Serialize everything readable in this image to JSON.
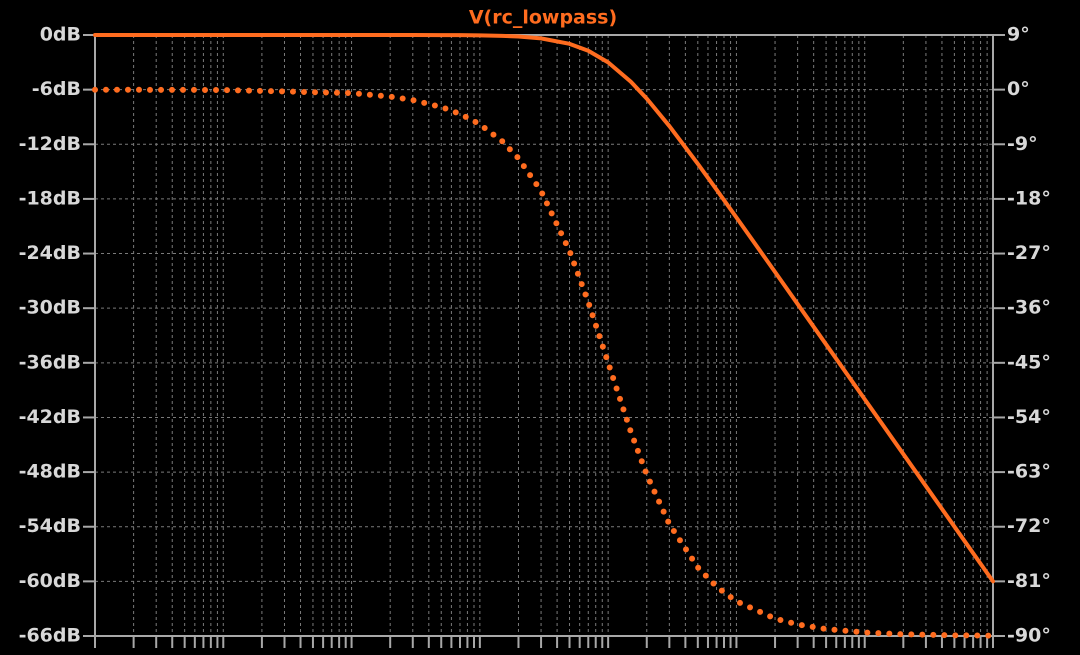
{
  "chart_data": {
    "type": "line",
    "title": "V(rc_lowpass)",
    "x": [
      1,
      10,
      100,
      200,
      300,
      500,
      700,
      1000,
      1500,
      2000,
      3000,
      5000,
      7000,
      10000,
      15000,
      20000,
      30000,
      50000,
      70000,
      100000,
      200000,
      300000,
      500000,
      1000000,
      2000000,
      5000000,
      10000000
    ],
    "xlim": [
      1,
      10000000
    ],
    "xscale": "log",
    "xticks": [
      1,
      2,
      3,
      4,
      5,
      6,
      7,
      8,
      9,
      10,
      20,
      30,
      40,
      50,
      60,
      70,
      80,
      90,
      100,
      200,
      300,
      400,
      500,
      600,
      700,
      800,
      900,
      1000,
      2000,
      3000,
      4000,
      5000,
      6000,
      7000,
      8000,
      9000,
      10000,
      20000,
      30000,
      40000,
      50000,
      60000,
      70000,
      80000,
      90000,
      100000,
      200000,
      300000,
      400000,
      500000,
      600000,
      700000,
      800000,
      900000,
      1000000,
      2000000,
      3000000,
      4000000,
      5000000,
      6000000,
      7000000,
      8000000,
      9000000,
      10000000
    ],
    "ylim": [
      -66,
      0
    ],
    "yticks": [
      {
        "value": 0,
        "label": "0dB"
      },
      {
        "value": -6,
        "label": "-6dB"
      },
      {
        "value": -12,
        "label": "-12dB"
      },
      {
        "value": -18,
        "label": "-18dB"
      },
      {
        "value": -24,
        "label": "-24dB"
      },
      {
        "value": -30,
        "label": "-30dB"
      },
      {
        "value": -36,
        "label": "-36dB"
      },
      {
        "value": -42,
        "label": "-42dB"
      },
      {
        "value": -48,
        "label": "-48dB"
      },
      {
        "value": -54,
        "label": "-54dB"
      },
      {
        "value": -60,
        "label": "-60dB"
      },
      {
        "value": -66,
        "label": "-66dB"
      }
    ],
    "y2lim": [
      -90,
      9
    ],
    "y2ticks": [
      {
        "value": 9,
        "label": "9°"
      },
      {
        "value": 0,
        "label": "0°"
      },
      {
        "value": -9,
        "label": "-9°"
      },
      {
        "value": -18,
        "label": "-18°"
      },
      {
        "value": -27,
        "label": "-27°"
      },
      {
        "value": -36,
        "label": "-36°"
      },
      {
        "value": -45,
        "label": "-45°"
      },
      {
        "value": -54,
        "label": "-54°"
      },
      {
        "value": -63,
        "label": "-63°"
      },
      {
        "value": -72,
        "label": "-72°"
      },
      {
        "value": -81,
        "label": "-81°"
      },
      {
        "value": -90,
        "label": "-90°"
      }
    ],
    "grid": true,
    "series": [
      {
        "color": "#ff6c1f",
        "dash": "solid",
        "axis": "y",
        "values": [
          0,
          0,
          0,
          0,
          0,
          -0.01,
          -0.02,
          -0.04,
          -0.1,
          -0.17,
          -0.37,
          -0.97,
          -1.73,
          -3.01,
          -5.12,
          -6.99,
          -10,
          -14.15,
          -16.99,
          -20.04,
          -26.03,
          -29.55,
          -33.98,
          -40,
          -46.02,
          -53.98,
          -60
        ]
      },
      {
        "color": "#ff6c1f",
        "dash": "dotted",
        "axis": "y2",
        "values": [
          -0.01,
          -0.06,
          -0.57,
          -1.15,
          -1.72,
          -2.86,
          -4.0,
          -5.71,
          -8.53,
          -11.31,
          -16.7,
          -26.57,
          -34.99,
          -45,
          -56.31,
          -63.43,
          -71.57,
          -78.69,
          -81.87,
          -84.29,
          -87.14,
          -88.09,
          -88.85,
          -89.43,
          -89.71,
          -89.89,
          -89.94
        ]
      }
    ]
  }
}
